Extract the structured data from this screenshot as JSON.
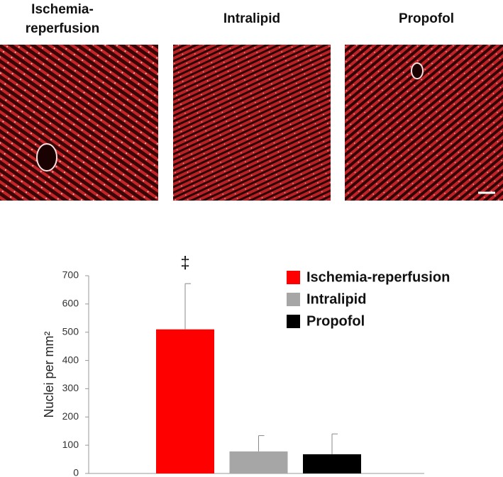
{
  "panels": [
    {
      "title": [
        "Ischemia-",
        "reperfusion"
      ]
    },
    {
      "title": [
        "Intralipid"
      ]
    },
    {
      "title": [
        "Propofol"
      ]
    }
  ],
  "chart_data": {
    "type": "bar",
    "ylabel": "Nuclei per mm²",
    "annotation": "‡",
    "categories": [
      null
    ],
    "series": [
      {
        "name": "Ischemia-reperfusion",
        "color": "#ff0000",
        "values": [
          510
        ],
        "errors": [
          162
        ]
      },
      {
        "name": "Intralipid",
        "color": "#a6a6a6",
        "values": [
          78
        ],
        "errors": [
          56
        ]
      },
      {
        "name": "Propofol",
        "color": "#000000",
        "values": [
          68
        ],
        "errors": [
          72
        ]
      }
    ],
    "ylim": [
      0,
      700
    ],
    "yticks": [
      0,
      100,
      200,
      300,
      400,
      500,
      600,
      700
    ],
    "legend": "upper right",
    "grid": false
  }
}
